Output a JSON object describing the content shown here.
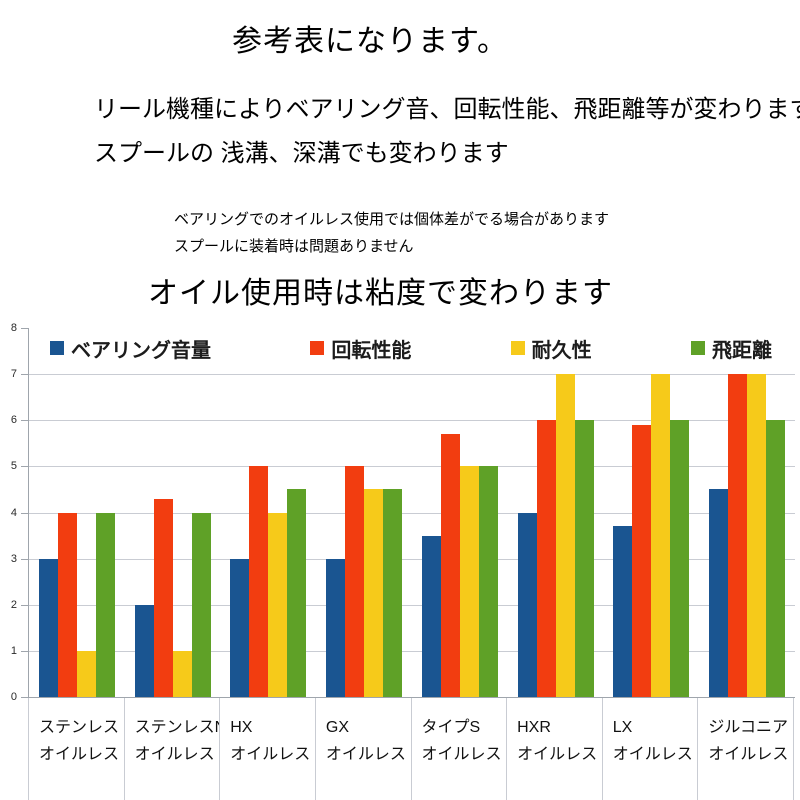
{
  "page": {
    "title": "参考表になります。",
    "description": {
      "line1": "リール機種によりベアリング音、回転性能、飛距離等が変わります。",
      "line2": "スプールの 浅溝、深溝でも変わります"
    },
    "note": {
      "line1": "ベアリングでのオイルレス使用では個体差がでる場合があります",
      "line2": "スプールに装着時は問題ありません"
    }
  },
  "chart_data": {
    "type": "bar",
    "title": "オイル使用時は粘度で変わります",
    "categories": [
      [
        "ステンレス",
        "オイルレス"
      ],
      [
        "ステンレスN",
        "オイルレス"
      ],
      [
        "HX",
        "オイルレス"
      ],
      [
        "GX",
        "オイルレス"
      ],
      [
        "タイプS",
        "オイルレス"
      ],
      [
        "HXR",
        "オイルレス"
      ],
      [
        "LX",
        "オイルレス"
      ],
      [
        "ジルコニア",
        "オイルレス"
      ]
    ],
    "series": [
      {
        "name": "ベアリング音量",
        "color": "#1a5591",
        "values": [
          3,
          2,
          3,
          3,
          3.5,
          4,
          3.7,
          4.5
        ]
      },
      {
        "name": "回転性能",
        "color": "#f23d10",
        "values": [
          4,
          4.3,
          5,
          5,
          5.7,
          6,
          5.9,
          7
        ]
      },
      {
        "name": "耐久性",
        "color": "#f6ca1a",
        "values": [
          1,
          1,
          4,
          4.5,
          5,
          7,
          7,
          7
        ]
      },
      {
        "name": "飛距離",
        "color": "#5fa127",
        "values": [
          4,
          4,
          4.5,
          4.5,
          5,
          6,
          6,
          6
        ]
      }
    ],
    "ylim": [
      0,
      8
    ],
    "yticks": [
      0,
      1,
      2,
      3,
      4,
      5,
      6,
      7,
      8
    ],
    "grid": true,
    "legend_position": "top-inside",
    "axis_color": "#9fa5ac",
    "grid_color": "#c9ccd3"
  }
}
